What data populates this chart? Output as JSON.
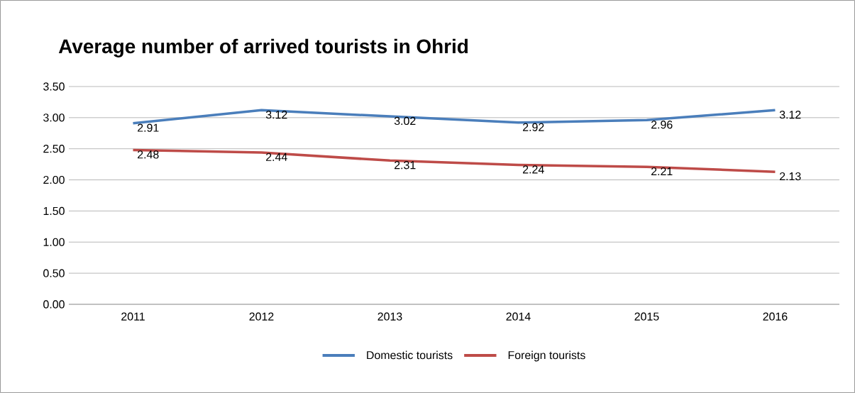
{
  "chart_data": {
    "type": "line",
    "title": "Average number of arrived tourists in Ohrid",
    "categories": [
      "2011",
      "2012",
      "2013",
      "2014",
      "2015",
      "2016"
    ],
    "series": [
      {
        "name": "Domestic tourists",
        "color": "#4a7ebb",
        "values": [
          2.91,
          3.12,
          3.02,
          2.92,
          2.96,
          3.12
        ]
      },
      {
        "name": "Foreign tourists",
        "color": "#be4b48",
        "values": [
          2.48,
          2.44,
          2.31,
          2.24,
          2.21,
          2.13
        ]
      }
    ],
    "ylim": [
      0,
      3.5
    ],
    "yticks": [
      {
        "value": 0,
        "label": "0.00"
      },
      {
        "value": 0.5,
        "label": "0.50"
      },
      {
        "value": 1,
        "label": "1.00"
      },
      {
        "value": 1.5,
        "label": "1.50"
      },
      {
        "value": 2,
        "label": "2.00"
      },
      {
        "value": 2.5,
        "label": "2.50"
      },
      {
        "value": 3,
        "label": "3.00"
      },
      {
        "value": 3.5,
        "label": "3.50"
      }
    ],
    "grid": "y",
    "legend": "bottom",
    "data_labels": true,
    "marker": "none",
    "line_style": "solid"
  }
}
